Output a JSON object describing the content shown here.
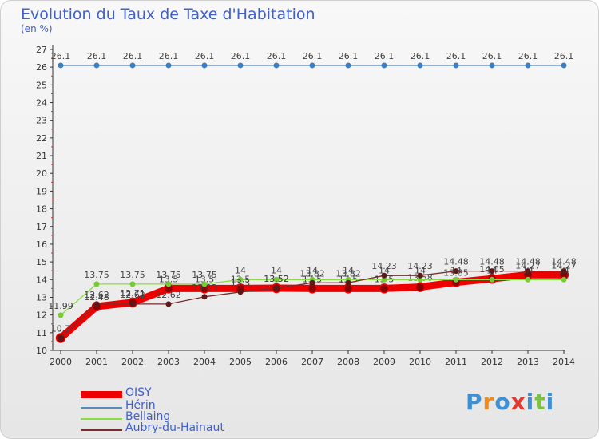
{
  "chart_data": {
    "type": "line",
    "title": "Evolution du Taux de Taxe d'Habitation",
    "unit_label": "(en %)",
    "xlabel": "",
    "ylabel": "(en %)",
    "x": [
      "2000",
      "2001",
      "2002",
      "2003",
      "2004",
      "2005",
      "2006",
      "2007",
      "2008",
      "2009",
      "2010",
      "2011",
      "2012",
      "2013",
      "2014"
    ],
    "ylim": [
      10,
      27
    ],
    "yticks": [
      10,
      11,
      12,
      13,
      14,
      15,
      16,
      17,
      18,
      19,
      20,
      21,
      22,
      23,
      24,
      25,
      26,
      27
    ],
    "grid": false,
    "legend_position": "bottom-left",
    "series": [
      {
        "name": "OISY",
        "color": "#ee0000",
        "values": [
          10.7,
          12.48,
          12.71,
          13.5,
          13.5,
          13.5,
          13.52,
          13.5,
          13.5,
          13.5,
          13.58,
          13.85,
          14.05,
          14.27,
          14.27
        ]
      },
      {
        "name": "Hérin",
        "color": "#5a8ab8",
        "values": [
          26.1,
          26.1,
          26.1,
          26.1,
          26.1,
          26.1,
          26.1,
          26.1,
          26.1,
          26.1,
          26.1,
          26.1,
          26.1,
          26.1,
          26.1
        ]
      },
      {
        "name": "Bellaing",
        "color": "#88dd44",
        "values": [
          11.99,
          13.75,
          13.75,
          13.75,
          13.75,
          14,
          14,
          14,
          14,
          14,
          14,
          14,
          14,
          14,
          14
        ]
      },
      {
        "name": "Aubry-du-Hainaut",
        "color": "#7a2c2c",
        "values": [
          10.7,
          12.62,
          12.62,
          12.62,
          13.03,
          13.3,
          13.52,
          13.82,
          13.82,
          14.23,
          14.23,
          14.48,
          14.48,
          14.48,
          14.48
        ]
      }
    ]
  },
  "logo": {
    "letters": [
      "P",
      "r",
      "o",
      "x",
      "i",
      "t",
      "i"
    ],
    "colors": [
      "#3d8fd6",
      "#f08a1c",
      "#3d8fd6",
      "#e23a2f",
      "#3d8fd6",
      "#7cc242",
      "#3d8fd6"
    ]
  }
}
